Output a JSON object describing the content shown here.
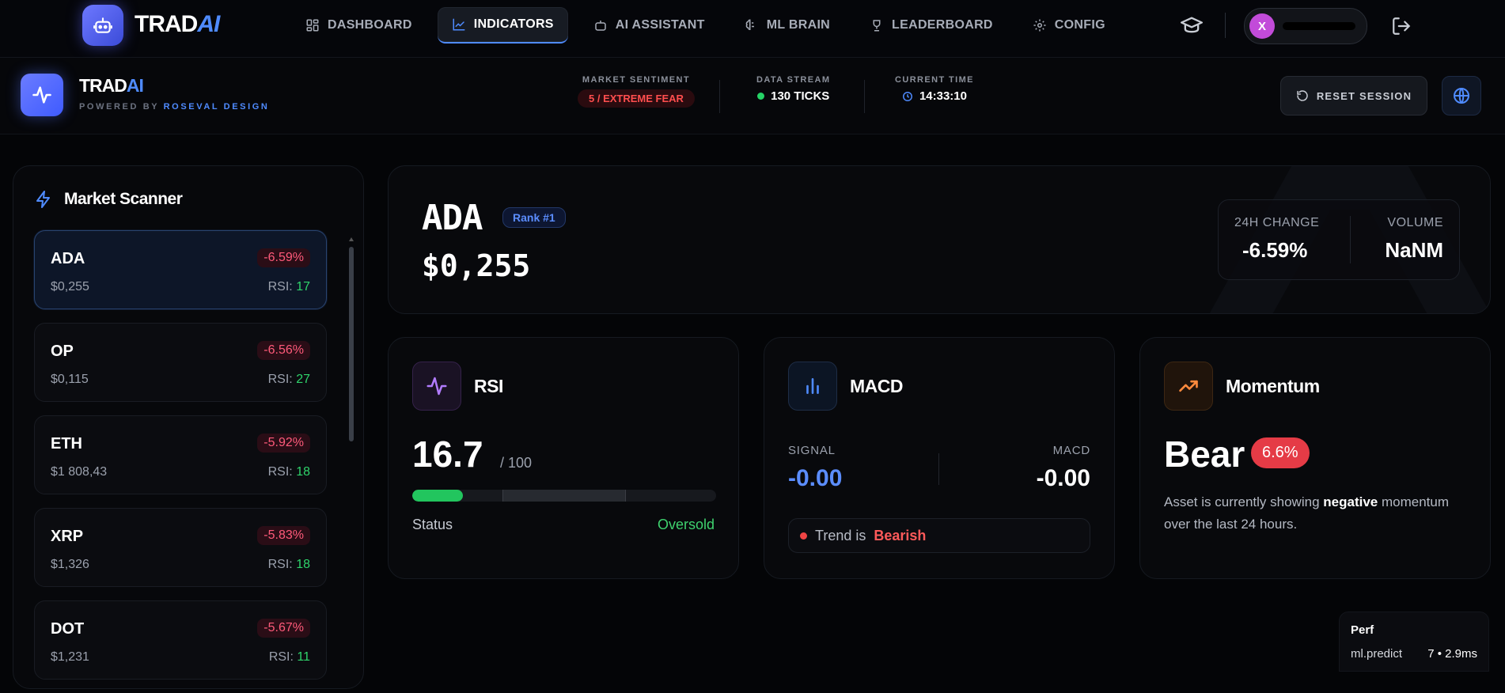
{
  "nav": {
    "brand_main": "TRAD",
    "brand_accent": "AI",
    "items": [
      {
        "label": "DASHBOARD",
        "icon": "grid-icon"
      },
      {
        "label": "INDICATORS",
        "icon": "chart-line-icon",
        "active": true
      },
      {
        "label": "AI ASSISTANT",
        "icon": "robot-icon"
      },
      {
        "label": "ML BRAIN",
        "icon": "brain-icon"
      },
      {
        "label": "LEADERBOARD",
        "icon": "trophy-icon"
      },
      {
        "label": "CONFIG",
        "icon": "gear-icon"
      }
    ],
    "avatar_initial": "X"
  },
  "header": {
    "title_main": "TRAD",
    "title_accent": "AI",
    "powered_prefix": "POWERED BY",
    "powered_brand": "ROSEVAL DESIGN",
    "sentiment_label": "MARKET SENTIMENT",
    "sentiment_value": "5 / EXTREME FEAR",
    "stream_label": "DATA STREAM",
    "stream_value": "130 TICKS",
    "time_label": "CURRENT TIME",
    "time_value": "14:33:10",
    "reset_label": "RESET SESSION"
  },
  "scanner": {
    "title": "Market Scanner",
    "rsi_label": "RSI:",
    "coins": [
      {
        "symbol": "ADA",
        "price": "$0,255",
        "change": "-6.59%",
        "rsi": "17"
      },
      {
        "symbol": "OP",
        "price": "$0,115",
        "change": "-6.56%",
        "rsi": "27"
      },
      {
        "symbol": "ETH",
        "price": "$1 808,43",
        "change": "-5.92%",
        "rsi": "18"
      },
      {
        "symbol": "XRP",
        "price": "$1,326",
        "change": "-5.83%",
        "rsi": "18"
      },
      {
        "symbol": "DOT",
        "price": "$1,231",
        "change": "-5.67%",
        "rsi": "11"
      }
    ]
  },
  "asset": {
    "symbol": "ADA",
    "rank": "Rank #1",
    "price": "$0,255",
    "change_label": "24H CHANGE",
    "change_value": "-6.59%",
    "volume_label": "VOLUME",
    "volume_value": "NaNM"
  },
  "rsi": {
    "title": "RSI",
    "value": "16.7",
    "max": "/ 100",
    "level": 16.7,
    "status_label": "Status",
    "status_value": "Oversold"
  },
  "macd": {
    "title": "MACD",
    "signal_label": "SIGNAL",
    "signal_value": "-0.00",
    "macd_label": "MACD",
    "macd_value": "-0.00",
    "trend_prefix": "Trend is",
    "trend_value": "Bearish"
  },
  "momentum": {
    "title": "Momentum",
    "state": "Bear",
    "badge": "6.6%",
    "desc_1": "Asset is currently showing",
    "desc_bold": "negative",
    "desc_2": "momentum over the last 24 hours."
  },
  "perf": {
    "title": "Perf",
    "key": "ml.predict",
    "value": "7 • 2.9ms"
  },
  "colors": {
    "accent": "#4f8bff",
    "negative": "#ff5a7a",
    "positive": "#2fd46b",
    "bear": "#e53b46"
  }
}
